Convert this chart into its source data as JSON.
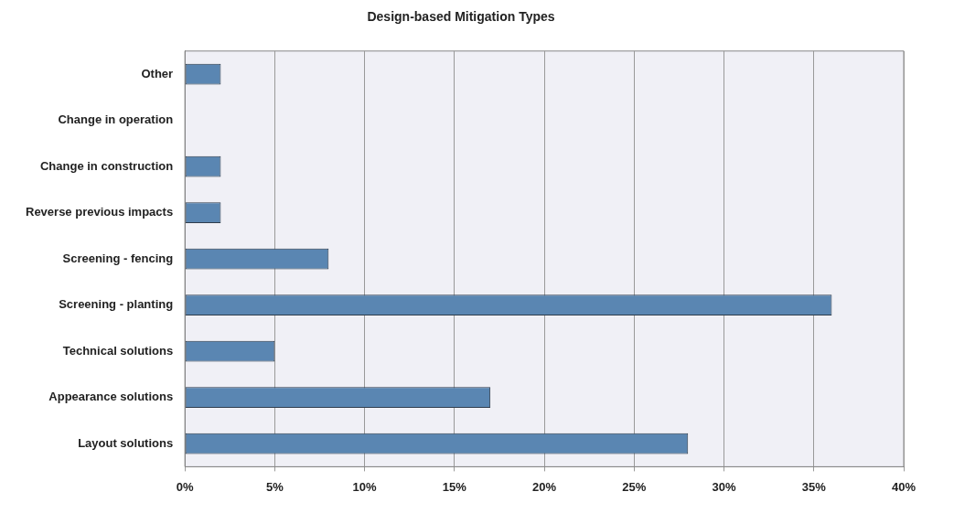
{
  "chart_data": {
    "type": "bar",
    "orientation": "horizontal",
    "title": "Design-based Mitigation Types",
    "categories": [
      "Other",
      "Change in operation",
      "Change in construction",
      "Reverse previous impacts",
      "Screening - fencing",
      "Screening - planting",
      "Technical solutions",
      "Appearance solutions",
      "Layout solutions"
    ],
    "values": [
      2,
      0,
      2,
      2,
      8,
      36,
      5,
      17,
      28
    ],
    "color": "#5a86b2",
    "xlim": [
      0,
      40
    ],
    "xticks": [
      {
        "value": 0,
        "label": "0%"
      },
      {
        "value": 5,
        "label": "5%"
      },
      {
        "value": 10,
        "label": "10%"
      },
      {
        "value": 15,
        "label": "15%"
      },
      {
        "value": 20,
        "label": "20%"
      },
      {
        "value": 25,
        "label": "25%"
      },
      {
        "value": 30,
        "label": "30%"
      },
      {
        "value": 35,
        "label": "35%"
      },
      {
        "value": 40,
        "label": "40%"
      }
    ],
    "grid": "x",
    "legend": false
  }
}
